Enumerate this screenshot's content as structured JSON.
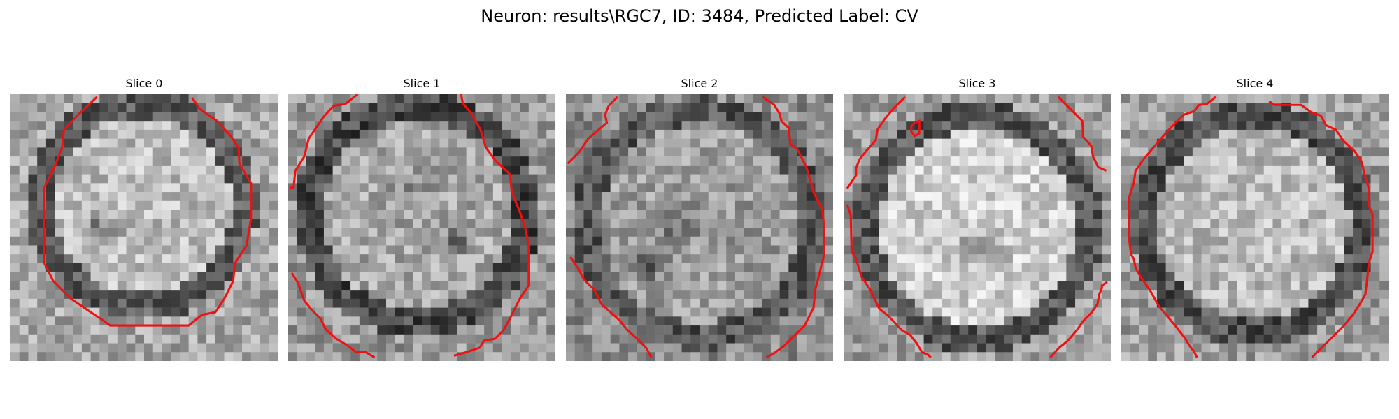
{
  "title": "Neuron: results\\RGC7, ID: 3484, Predicted Label: CV",
  "colors": {
    "contour": "#ee1111",
    "background": "#ffffff"
  },
  "slices": [
    {
      "title": "Slice 0",
      "bright_center": true,
      "dark_ring": true
    },
    {
      "title": "Slice 1",
      "bright_center": false,
      "dark_ring": true
    },
    {
      "title": "Slice 2",
      "bright_center": false,
      "dark_ring": true
    },
    {
      "title": "Slice 3",
      "bright_center": true,
      "dark_ring": true
    },
    {
      "title": "Slice 4",
      "bright_center": true,
      "dark_ring": true
    }
  ]
}
